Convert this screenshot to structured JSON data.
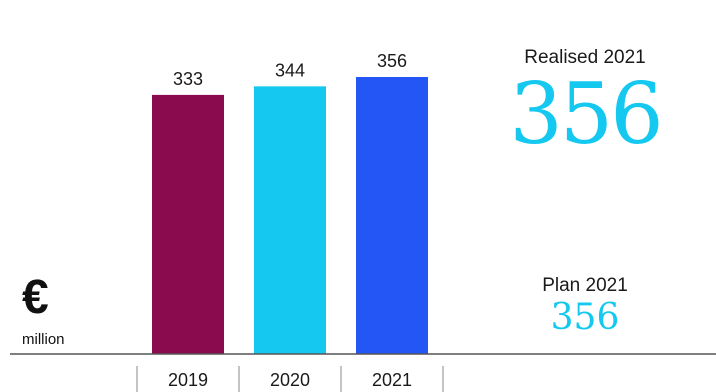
{
  "chart_data": {
    "type": "bar",
    "categories": [
      "2019",
      "2020",
      "2021"
    ],
    "values": [
      333,
      344,
      356
    ],
    "data_labels": [
      "333",
      "344",
      "356"
    ],
    "colors": [
      "#8a0b4e",
      "#14c8f0",
      "#2456f5"
    ],
    "ylim": [
      0,
      365
    ],
    "grid": false,
    "unit": {
      "symbol": "€",
      "label": "million"
    }
  },
  "summary": {
    "realised_label": "Realised 2021",
    "realised_value": "356",
    "plan_label": "Plan 2021",
    "plan_value": "356",
    "accent_color": "#14c8f0"
  }
}
